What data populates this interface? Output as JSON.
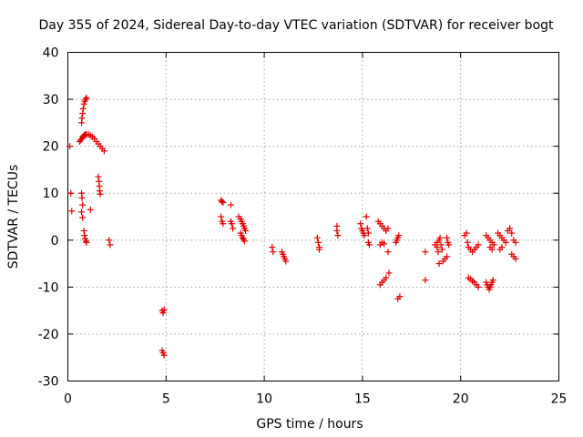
{
  "chart_data": {
    "type": "scatter",
    "title": "Day 355 of 2024, Sidereal Day-to-day VTEC variation (SDTVAR) for receiver bogt",
    "xlabel": "GPS time / hours",
    "ylabel": "SDTVAR / TECUs",
    "xlim": [
      0,
      25
    ],
    "ylim": [
      -30,
      40
    ],
    "xticks": [
      "0",
      "5",
      "10",
      "15",
      "20",
      "25"
    ],
    "yticks": [
      "-30",
      "-20",
      "-10",
      "0",
      "10",
      "20",
      "30",
      "40"
    ],
    "grid": true,
    "marker": "plus",
    "color": "#e00000",
    "series": [
      {
        "name": "SDTVAR",
        "points": [
          [
            0.1,
            20.0
          ],
          [
            0.15,
            10.0
          ],
          [
            0.2,
            6.2
          ],
          [
            0.6,
            21.0
          ],
          [
            0.65,
            21.3
          ],
          [
            0.7,
            21.6
          ],
          [
            0.75,
            22.0
          ],
          [
            0.8,
            22.2
          ],
          [
            0.85,
            22.4
          ],
          [
            0.9,
            22.5
          ],
          [
            0.95,
            22.5
          ],
          [
            1.05,
            22.5
          ],
          [
            1.15,
            22.3
          ],
          [
            1.25,
            22.0
          ],
          [
            1.35,
            21.6
          ],
          [
            1.45,
            21.0
          ],
          [
            1.55,
            20.5
          ],
          [
            1.65,
            20.0
          ],
          [
            1.75,
            19.5
          ],
          [
            1.85,
            19.0
          ],
          [
            0.7,
            25.0
          ],
          [
            0.72,
            26.0
          ],
          [
            0.75,
            27.0
          ],
          [
            0.78,
            28.0
          ],
          [
            0.82,
            29.0
          ],
          [
            0.86,
            29.6
          ],
          [
            0.9,
            30.0
          ],
          [
            0.95,
            30.3
          ],
          [
            0.7,
            10.0
          ],
          [
            0.72,
            9.0
          ],
          [
            0.75,
            7.5
          ],
          [
            0.7,
            6.0
          ],
          [
            0.75,
            4.8
          ],
          [
            0.82,
            2.0
          ],
          [
            0.85,
            1.0
          ],
          [
            0.88,
            0.3
          ],
          [
            0.92,
            -0.2
          ],
          [
            0.95,
            -0.5
          ],
          [
            1.15,
            6.5
          ],
          [
            1.55,
            13.5
          ],
          [
            1.58,
            12.5
          ],
          [
            1.6,
            11.5
          ],
          [
            1.62,
            10.5
          ],
          [
            1.65,
            9.8
          ],
          [
            2.1,
            0.0
          ],
          [
            2.15,
            -1.0
          ],
          [
            4.8,
            -15.0
          ],
          [
            4.85,
            -15.5
          ],
          [
            4.9,
            -14.8
          ],
          [
            4.8,
            -23.5
          ],
          [
            4.85,
            -24.0
          ],
          [
            4.9,
            -24.5
          ],
          [
            7.8,
            8.5
          ],
          [
            7.85,
            8.2
          ],
          [
            7.9,
            8.0
          ],
          [
            7.8,
            5.0
          ],
          [
            7.85,
            4.0
          ],
          [
            7.9,
            3.5
          ],
          [
            8.3,
            7.5
          ],
          [
            8.3,
            4.0
          ],
          [
            8.35,
            3.5
          ],
          [
            8.4,
            2.5
          ],
          [
            8.7,
            5.0
          ],
          [
            8.8,
            4.5
          ],
          [
            8.85,
            4.0
          ],
          [
            8.9,
            3.5
          ],
          [
            8.95,
            3.0
          ],
          [
            9.0,
            2.5
          ],
          [
            9.05,
            2.0
          ],
          [
            8.8,
            1.5
          ],
          [
            8.85,
            1.0
          ],
          [
            8.9,
            0.5
          ],
          [
            8.95,
            0.2
          ],
          [
            9.0,
            -0.2
          ],
          [
            10.4,
            -1.5
          ],
          [
            10.45,
            -2.5
          ],
          [
            10.9,
            -2.5
          ],
          [
            10.95,
            -3.0
          ],
          [
            11.0,
            -3.5
          ],
          [
            11.05,
            -4.0
          ],
          [
            11.1,
            -4.5
          ],
          [
            12.7,
            0.5
          ],
          [
            12.75,
            -0.5
          ],
          [
            12.8,
            -1.5
          ],
          [
            12.8,
            -2.0
          ],
          [
            13.7,
            3.0
          ],
          [
            13.7,
            2.0
          ],
          [
            13.75,
            1.0
          ],
          [
            14.9,
            3.5
          ],
          [
            14.95,
            2.5
          ],
          [
            15.0,
            2.0
          ],
          [
            15.05,
            1.5
          ],
          [
            15.1,
            1.0
          ],
          [
            15.2,
            5.0
          ],
          [
            15.25,
            2.5
          ],
          [
            15.3,
            1.5
          ],
          [
            15.3,
            -0.5
          ],
          [
            15.35,
            -1.0
          ],
          [
            15.8,
            4.0
          ],
          [
            15.9,
            3.5
          ],
          [
            16.0,
            3.0
          ],
          [
            16.1,
            2.5
          ],
          [
            16.2,
            2.0
          ],
          [
            16.3,
            2.5
          ],
          [
            16.35,
            -7.0
          ],
          [
            16.3,
            -2.5
          ],
          [
            15.9,
            -1.0
          ],
          [
            16.0,
            -0.5
          ],
          [
            16.1,
            -0.8
          ],
          [
            15.9,
            -9.5
          ],
          [
            16.0,
            -9.0
          ],
          [
            16.1,
            -8.5
          ],
          [
            16.2,
            -8.0
          ],
          [
            16.7,
            -0.5
          ],
          [
            16.75,
            0.0
          ],
          [
            16.8,
            0.5
          ],
          [
            16.85,
            1.0
          ],
          [
            16.9,
            -12.0
          ],
          [
            16.8,
            -12.5
          ],
          [
            18.2,
            -2.5
          ],
          [
            18.2,
            -8.5
          ],
          [
            18.7,
            -1.0
          ],
          [
            18.8,
            -0.5
          ],
          [
            18.9,
            0.0
          ],
          [
            18.95,
            0.5
          ],
          [
            19.0,
            -1.0
          ],
          [
            19.05,
            -2.0
          ],
          [
            18.8,
            -1.5
          ],
          [
            18.85,
            -2.5
          ],
          [
            18.9,
            -5.0
          ],
          [
            19.1,
            -4.5
          ],
          [
            19.2,
            -4.0
          ],
          [
            19.3,
            -3.5
          ],
          [
            19.3,
            0.5
          ],
          [
            19.35,
            -0.5
          ],
          [
            19.4,
            -1.0
          ],
          [
            20.2,
            1.0
          ],
          [
            20.3,
            1.5
          ],
          [
            20.35,
            -0.5
          ],
          [
            20.4,
            -1.5
          ],
          [
            20.5,
            -2.0
          ],
          [
            20.6,
            -2.5
          ],
          [
            20.7,
            -2.0
          ],
          [
            20.8,
            -1.5
          ],
          [
            20.9,
            -1.0
          ],
          [
            20.4,
            -8.0
          ],
          [
            20.5,
            -8.3
          ],
          [
            20.6,
            -8.7
          ],
          [
            20.7,
            -9.0
          ],
          [
            20.8,
            -9.5
          ],
          [
            20.9,
            -10.0
          ],
          [
            21.3,
            1.0
          ],
          [
            21.4,
            0.5
          ],
          [
            21.5,
            0.0
          ],
          [
            21.6,
            -0.5
          ],
          [
            21.7,
            -1.0
          ],
          [
            21.5,
            -1.5
          ],
          [
            21.6,
            -2.0
          ],
          [
            21.3,
            -9.0
          ],
          [
            21.35,
            -9.5
          ],
          [
            21.4,
            -10.0
          ],
          [
            21.45,
            -10.5
          ],
          [
            21.5,
            -10.0
          ],
          [
            21.55,
            -9.5
          ],
          [
            21.6,
            -9.0
          ],
          [
            21.65,
            -8.5
          ],
          [
            21.9,
            1.5
          ],
          [
            22.0,
            1.0
          ],
          [
            22.1,
            0.5
          ],
          [
            22.2,
            0.0
          ],
          [
            22.3,
            -0.5
          ],
          [
            22.0,
            -2.0
          ],
          [
            22.1,
            -1.5
          ],
          [
            22.4,
            2.0
          ],
          [
            22.5,
            2.5
          ],
          [
            22.6,
            1.5
          ],
          [
            22.7,
            0.0
          ],
          [
            22.8,
            -0.5
          ],
          [
            22.6,
            -3.0
          ],
          [
            22.7,
            -3.5
          ],
          [
            22.8,
            -4.0
          ]
        ]
      }
    ]
  }
}
